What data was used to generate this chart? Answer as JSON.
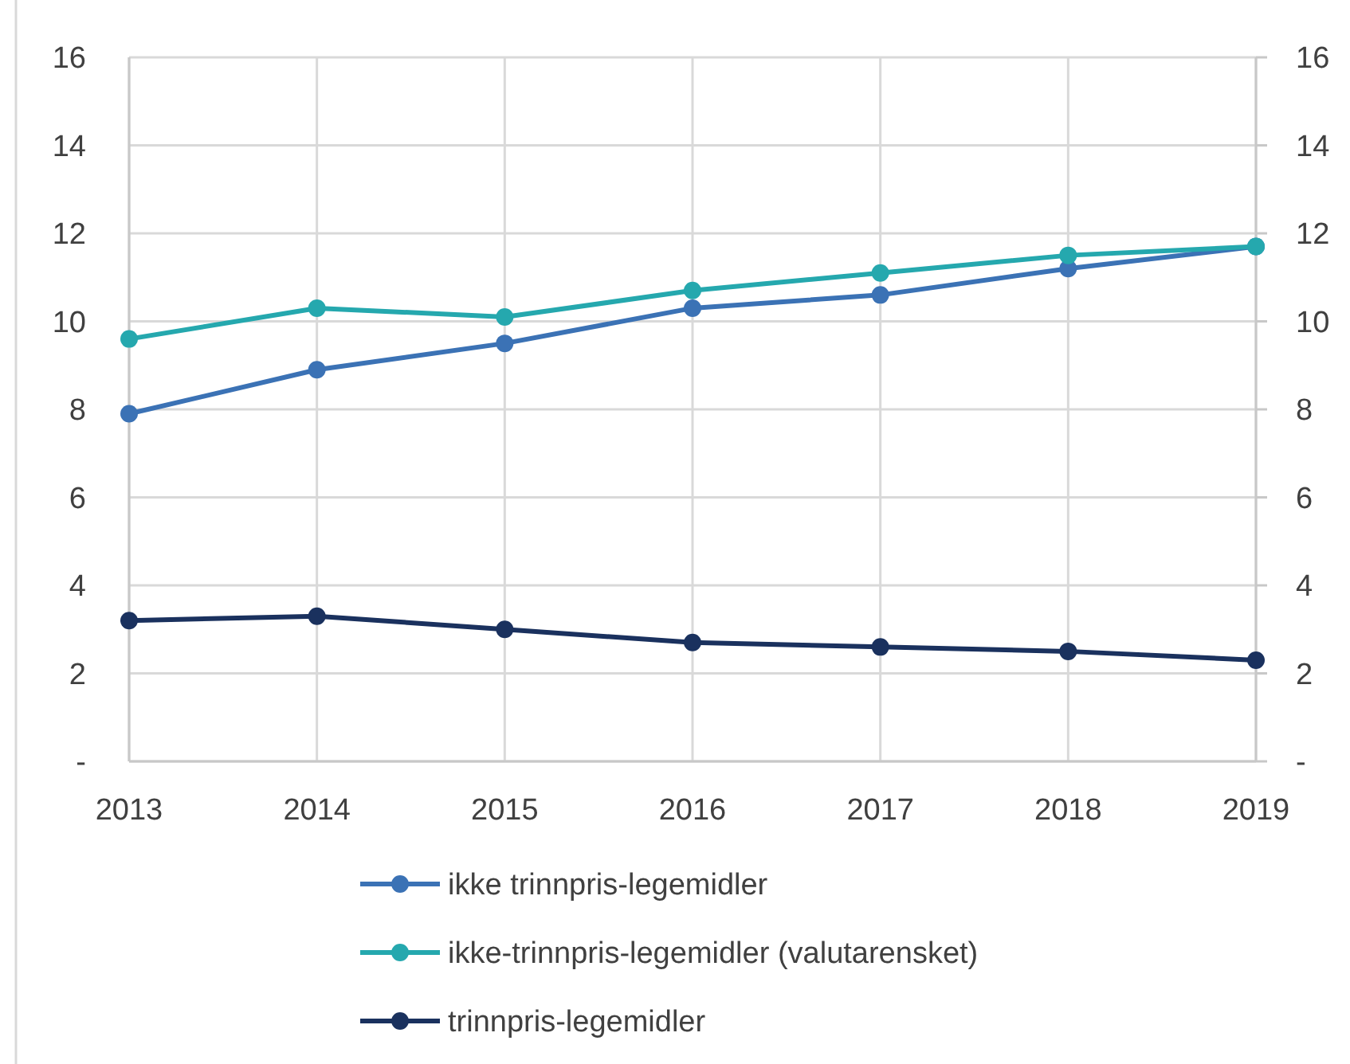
{
  "chart_data": {
    "type": "line",
    "categories": [
      "2013",
      "2014",
      "2015",
      "2016",
      "2017",
      "2018",
      "2019"
    ],
    "series": [
      {
        "name": "ikke trinnpris-legemidler",
        "color": "#3b72b5",
        "values": [
          7.9,
          8.9,
          9.5,
          10.3,
          10.6,
          11.2,
          11.7
        ]
      },
      {
        "name": "ikke-trinnpris-legemidler (valutarensket)",
        "color": "#25a8ae",
        "values": [
          9.6,
          10.3,
          10.1,
          10.7,
          11.1,
          11.5,
          11.7
        ]
      },
      {
        "name": "trinnpris-legemidler",
        "color": "#1a315e",
        "values": [
          3.2,
          3.3,
          3.0,
          2.7,
          2.6,
          2.5,
          2.3
        ]
      }
    ],
    "ylim": [
      0,
      16
    ],
    "yticks": [
      {
        "value": 0,
        "label": "-"
      },
      2,
      4,
      6,
      8,
      10,
      12,
      14,
      16
    ],
    "y2lim": [
      0,
      16
    ],
    "y2ticks": [
      {
        "value": 0,
        "label": "-"
      },
      2,
      4,
      6,
      8,
      10,
      12,
      14,
      16
    ],
    "grid": true,
    "legend": "bottom",
    "marker": "circle",
    "line_style": "solid"
  }
}
